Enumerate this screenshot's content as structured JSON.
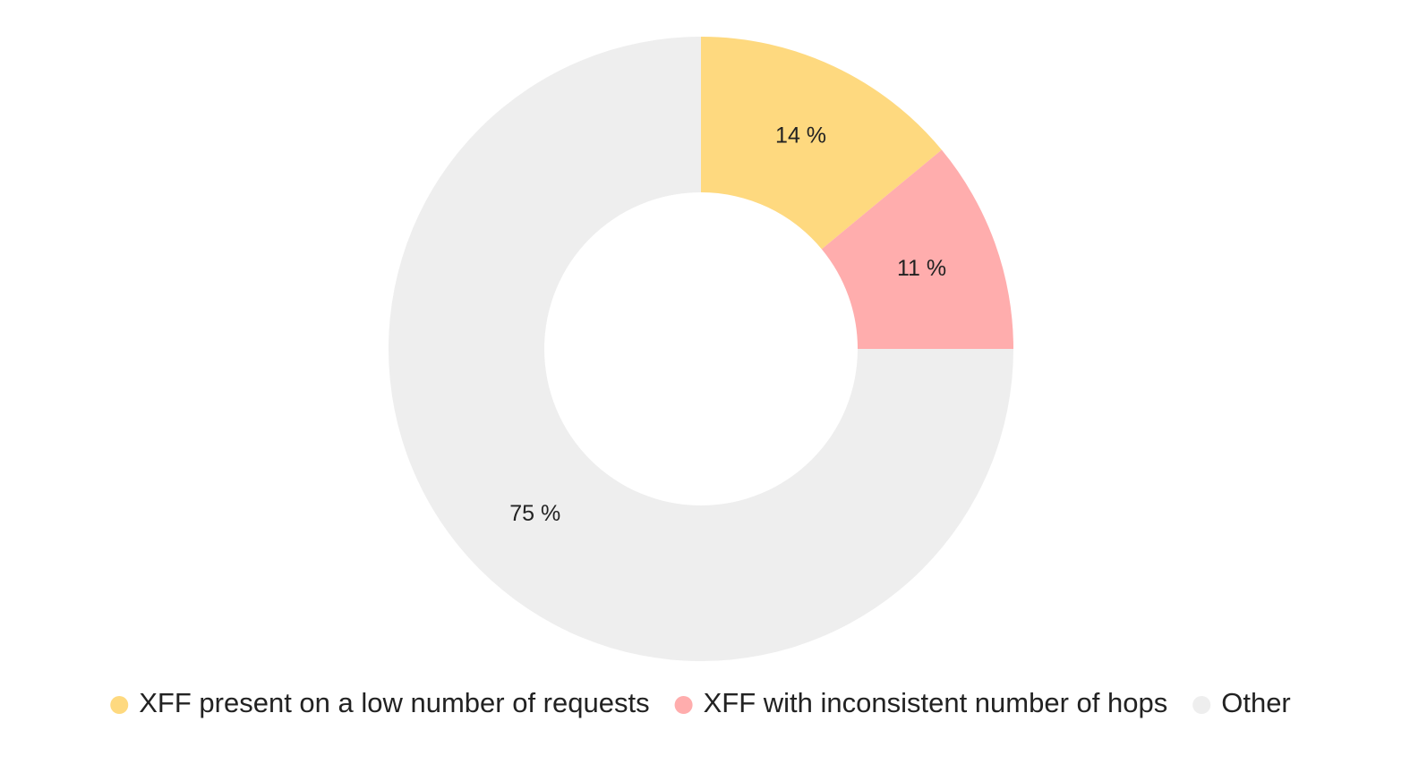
{
  "chart_data": {
    "type": "donut",
    "categories": [
      "XFF present on a low number of requests",
      "XFF with inconsistent number of hops",
      "Other"
    ],
    "values": [
      14,
      11,
      75
    ],
    "value_labels": [
      "14 %",
      "11 %",
      "75 %"
    ],
    "colors": [
      "#fed97f",
      "#ffadad",
      "#eeeeee"
    ]
  }
}
